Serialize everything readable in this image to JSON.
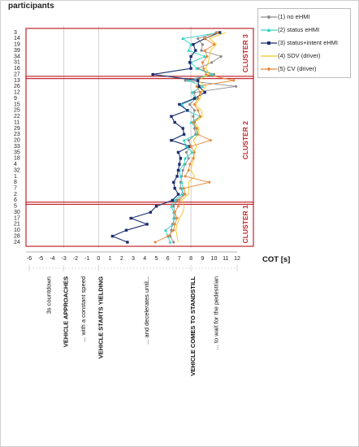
{
  "chart_data": {
    "type": "line",
    "title": "participants",
    "xlabel": "COT [s]",
    "ylabel": "",
    "xlim": [
      -6,
      12
    ],
    "xticks": [
      -6,
      -5,
      -4,
      -3,
      -2,
      -1,
      0,
      1,
      2,
      3,
      4,
      5,
      6,
      7,
      8,
      9,
      10,
      11,
      12
    ],
    "vlines": [
      -3,
      0,
      8
    ],
    "participants": [
      "3",
      "14",
      "19",
      "39",
      "34",
      "31",
      "16",
      "27",
      "13",
      "26",
      "12",
      "9",
      "15",
      "25",
      "22",
      "11",
      "29",
      "23",
      "20",
      "33",
      "35",
      "18",
      "4",
      "32",
      "1",
      "8",
      "7",
      "2",
      "6",
      "5",
      "30",
      "17",
      "21",
      "10",
      "28",
      "24"
    ],
    "clusters": [
      {
        "label": "CLUSTER 3",
        "from": 0,
        "to": 7
      },
      {
        "label": "CLUSTER 2",
        "from": 8,
        "to": 28
      },
      {
        "label": "CLUSTER 1",
        "from": 29,
        "to": 35
      }
    ],
    "phases": [
      "3s countdown",
      "VEHICLE APPROACHES",
      "... with a constant speed",
      "VEHICLE STARTS YIELDING",
      "... and decelerates until...",
      "VEHICLE COMES TO STANDSTILL",
      "... to wait for the pedestrian"
    ],
    "series": [
      {
        "name": "(1) no eHMI",
        "color": "#8c8c8c",
        "marker": "circle",
        "values": [
          10.2,
          8.6,
          9.0,
          8.9,
          10.6,
          9.8,
          8.6,
          10.0,
          7.5,
          11.9,
          8.3,
          8.4,
          7.9,
          8.3,
          8.2,
          8.3,
          8.3,
          8.4,
          7.8,
          8.0,
          7.6,
          7.8,
          7.5,
          7.3,
          7.2,
          7.1,
          7.1,
          7.4,
          6.8,
          6.5,
          6.6,
          6.6,
          6.4,
          6.3,
          6.2,
          6.5
        ]
      },
      {
        "name": "(2) status eHMI",
        "color": "#2ed3c6",
        "marker": "triangle",
        "values": [
          10.5,
          7.3,
          8.0,
          7.8,
          9.2,
          8.0,
          8.5,
          9.8,
          7.8,
          9.0,
          8.1,
          8.4,
          7.2,
          7.6,
          8.8,
          8.0,
          8.5,
          8.5,
          7.4,
          7.6,
          8.1,
          7.5,
          7.4,
          7.0,
          7.1,
          7.2,
          7.3,
          7.2,
          6.6,
          6.3,
          6.5,
          6.5,
          6.5,
          5.8,
          6.0,
          6.2
        ]
      },
      {
        "name": "(3) status+intent eHMI",
        "color": "#1b2e6e",
        "marker": "square",
        "values": [
          10.5,
          9.2,
          8.2,
          8.4,
          8.0,
          7.9,
          8.0,
          4.7,
          8.6,
          8.7,
          9.2,
          8.3,
          7.0,
          7.7,
          6.3,
          6.6,
          7.3,
          7.4,
          6.3,
          7.9,
          6.9,
          7.1,
          7.0,
          6.9,
          6.8,
          6.5,
          6.6,
          6.9,
          6.4,
          5.0,
          4.5,
          2.8,
          4.2,
          2.4,
          1.2,
          2.5
        ]
      },
      {
        "name": "(4) SDV (driver)",
        "color": "#f5c518",
        "marker": "none",
        "values": [
          11.0,
          9.6,
          10.2,
          9.7,
          9.6,
          9.5,
          9.3,
          9.6,
          8.6,
          9.3,
          8.9,
          8.8,
          8.4,
          8.9,
          9.0,
          8.3,
          8.7,
          8.6,
          8.2,
          8.5,
          8.2,
          8.3,
          8.1,
          8.0,
          8.3,
          7.8,
          7.8,
          7.8,
          7.2,
          7.4,
          7.3,
          7.0,
          6.8,
          6.7,
          6.8,
          6.9
        ]
      },
      {
        "name": "(5) CV (driver)",
        "color": "#e8893a",
        "marker": "diamond",
        "values": [
          10.3,
          9.2,
          10.0,
          9.2,
          9.4,
          9.0,
          9.1,
          9.3,
          11.7,
          8.5,
          8.8,
          8.6,
          8.3,
          8.6,
          8.8,
          8.2,
          8.5,
          8.6,
          9.7,
          8.0,
          8.3,
          8.2,
          7.9,
          7.8,
          7.5,
          9.6,
          7.4,
          7.5,
          7.0,
          6.9,
          6.6,
          6.8,
          6.6,
          6.5,
          6.0,
          4.9
        ]
      }
    ]
  }
}
